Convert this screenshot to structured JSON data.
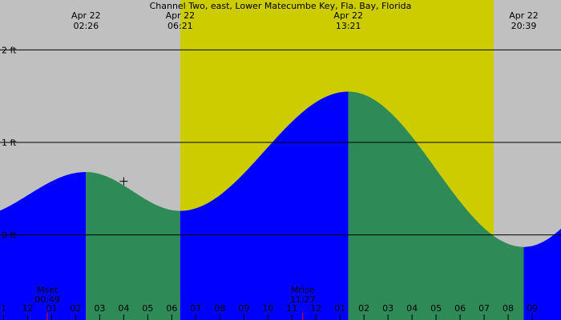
{
  "chart_data": {
    "type": "area",
    "title": "Channel Two, east, Lower Matecumbe Key, Fla. Bay, Florida",
    "x_unit": "hours",
    "x_range": [
      -1.15,
      22.2
    ],
    "ylim": [
      -0.92,
      2.54
    ],
    "y_gridlines": [
      0,
      1,
      2
    ],
    "y_tick_labels": [
      "0 ft",
      "1 ft",
      "2 ft"
    ],
    "daylight": {
      "start": 6.35,
      "end": 19.4
    },
    "colors": {
      "night": "#c0c0c0",
      "day": "#cccc00",
      "rising": "#0000ff",
      "falling": "#2e8b57",
      "grid": "#000000",
      "moon_tick": "#ff0000"
    },
    "tide_series": [
      {
        "x": -1.15,
        "y": 0.27
      },
      {
        "x": 2.43,
        "y": 0.68,
        "label_top": "Apr 22",
        "label_bottom": "02:26",
        "kind": "high"
      },
      {
        "x": 6.35,
        "y": 0.26,
        "label_top": "Apr 22",
        "label_bottom": "06:21",
        "kind": "low"
      },
      {
        "x": 13.35,
        "y": 1.55,
        "label_top": "Apr 22",
        "label_bottom": "13:21",
        "kind": "high"
      },
      {
        "x": 20.65,
        "y": -0.13,
        "label_top": "Apr 22",
        "label_bottom": "20:39",
        "kind": "low"
      },
      {
        "x": 22.2,
        "y": -0.02
      }
    ],
    "hour_labels": [
      {
        "x": -1,
        "label": "1"
      },
      {
        "x": 0,
        "label": "12"
      },
      {
        "x": 1,
        "label": "01"
      },
      {
        "x": 2,
        "label": "02"
      },
      {
        "x": 3,
        "label": "03"
      },
      {
        "x": 4,
        "label": "04"
      },
      {
        "x": 5,
        "label": "05"
      },
      {
        "x": 6,
        "label": "06"
      },
      {
        "x": 7,
        "label": "07"
      },
      {
        "x": 8,
        "label": "08"
      },
      {
        "x": 9,
        "label": "09"
      },
      {
        "x": 10,
        "label": "10"
      },
      {
        "x": 11,
        "label": "11"
      },
      {
        "x": 12,
        "label": "12"
      },
      {
        "x": 13,
        "label": "01"
      },
      {
        "x": 14,
        "label": "02"
      },
      {
        "x": 15,
        "label": "03"
      },
      {
        "x": 16,
        "label": "04"
      },
      {
        "x": 17,
        "label": "05"
      },
      {
        "x": 18,
        "label": "06"
      },
      {
        "x": 19,
        "label": "07"
      },
      {
        "x": 20,
        "label": "08"
      },
      {
        "x": 21,
        "label": "09"
      }
    ],
    "moon_events": [
      {
        "name": "Mset",
        "time": "00:49",
        "x": 0.82
      },
      {
        "name": "Mrise",
        "time": "11:27",
        "x": 11.45
      }
    ],
    "current_marker": {
      "x": 4.0,
      "y": 0.58
    }
  }
}
